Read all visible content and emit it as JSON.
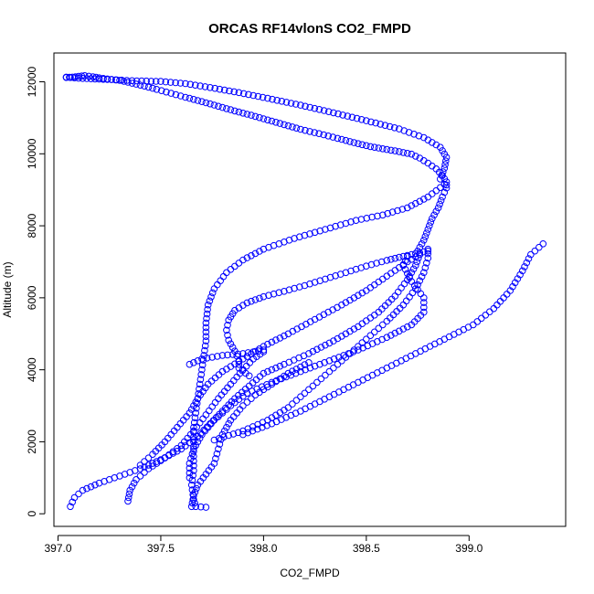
{
  "chart_data": {
    "type": "scatter",
    "title": "ORCAS RF14vlonS CO2_FMPD",
    "xlabel": "CO2_FMPD",
    "ylabel": "Altitude (m)",
    "xlim": [
      396.98,
      399.47
    ],
    "ylim": [
      -350,
      12800
    ],
    "x_ticks": [
      397.0,
      397.5,
      398.0,
      398.5,
      399.0
    ],
    "x_tick_labels": [
      "397.0",
      "397.5",
      "398.0",
      "398.5",
      "399.0"
    ],
    "y_ticks": [
      0,
      2000,
      4000,
      6000,
      8000,
      10000,
      12000
    ],
    "y_tick_labels": [
      "0",
      "2000",
      "4000",
      "6000",
      "8000",
      "10000",
      "12000"
    ],
    "grid": false,
    "marker": "open-circle",
    "color": "#0000FF",
    "series": [
      {
        "points": [
          [
            397.04,
            12120
          ],
          [
            397.07,
            12130
          ],
          [
            397.1,
            12150
          ],
          [
            397.13,
            12170
          ],
          [
            397.17,
            12140
          ],
          [
            397.2,
            12110
          ],
          [
            397.24,
            12080
          ],
          [
            397.3,
            12040
          ],
          [
            397.36,
            11960
          ],
          [
            397.42,
            11880
          ],
          [
            397.48,
            11790
          ],
          [
            397.55,
            11680
          ],
          [
            397.62,
            11570
          ],
          [
            397.7,
            11450
          ],
          [
            397.78,
            11320
          ],
          [
            397.86,
            11190
          ],
          [
            397.94,
            11070
          ],
          [
            398.02,
            10940
          ],
          [
            398.1,
            10810
          ],
          [
            398.18,
            10680
          ],
          [
            398.27,
            10560
          ],
          [
            398.36,
            10430
          ],
          [
            398.44,
            10310
          ],
          [
            398.52,
            10200
          ],
          [
            398.6,
            10120
          ],
          [
            398.66,
            10060
          ],
          [
            398.72,
            9990
          ],
          [
            398.76,
            9880
          ],
          [
            398.8,
            9740
          ],
          [
            398.84,
            9580
          ],
          [
            398.87,
            9400
          ],
          [
            398.89,
            9220
          ],
          [
            398.89,
            9050
          ],
          [
            398.87,
            8800
          ],
          [
            398.85,
            8500
          ],
          [
            398.82,
            8200
          ],
          [
            398.8,
            7900
          ],
          [
            398.78,
            7600
          ],
          [
            398.75,
            7300
          ]
        ]
      },
      {
        "points": [
          [
            398.8,
            7300
          ],
          [
            398.74,
            7230
          ],
          [
            398.68,
            7150
          ],
          [
            398.6,
            7040
          ],
          [
            398.5,
            6880
          ],
          [
            398.4,
            6700
          ],
          [
            398.3,
            6520
          ],
          [
            398.2,
            6340
          ],
          [
            398.1,
            6180
          ],
          [
            398.0,
            6030
          ],
          [
            397.92,
            5860
          ],
          [
            397.86,
            5650
          ],
          [
            397.83,
            5380
          ],
          [
            397.82,
            5100
          ],
          [
            397.83,
            4820
          ],
          [
            397.86,
            4520
          ],
          [
            397.88,
            4250
          ],
          [
            397.88,
            4050
          ],
          [
            397.93,
            3830
          ]
        ]
      },
      {
        "points": [
          [
            397.04,
            12130
          ],
          [
            397.1,
            12100
          ],
          [
            397.18,
            12080
          ],
          [
            397.26,
            12060
          ],
          [
            397.36,
            12030
          ],
          [
            397.5,
            12010
          ],
          [
            397.62,
            11950
          ],
          [
            397.74,
            11840
          ],
          [
            397.88,
            11700
          ],
          [
            398.02,
            11540
          ],
          [
            398.18,
            11350
          ],
          [
            398.34,
            11140
          ],
          [
            398.5,
            10920
          ],
          [
            398.66,
            10690
          ],
          [
            398.78,
            10450
          ],
          [
            398.86,
            10180
          ],
          [
            398.89,
            9900
          ],
          [
            398.88,
            9600
          ],
          [
            398.86,
            9300
          ]
        ]
      },
      {
        "points": [
          [
            398.88,
            9150
          ],
          [
            398.8,
            8800
          ],
          [
            398.7,
            8500
          ],
          [
            398.58,
            8300
          ],
          [
            398.45,
            8150
          ],
          [
            398.3,
            7900
          ],
          [
            398.15,
            7650
          ],
          [
            398.0,
            7350
          ],
          [
            397.9,
            7050
          ],
          [
            397.82,
            6700
          ],
          [
            397.76,
            6250
          ],
          [
            397.73,
            5800
          ],
          [
            397.72,
            5300
          ],
          [
            397.72,
            4800
          ],
          [
            397.71,
            4400
          ],
          [
            397.7,
            4000
          ],
          [
            397.69,
            3600
          ],
          [
            397.68,
            3200
          ],
          [
            397.67,
            2800
          ],
          [
            397.66,
            2400
          ],
          [
            397.66,
            2000
          ],
          [
            397.66,
            1600
          ],
          [
            397.66,
            1200
          ],
          [
            397.65,
            800
          ],
          [
            397.66,
            400
          ],
          [
            397.67,
            200
          ],
          [
            397.72,
            180
          ]
        ]
      },
      {
        "points": [
          [
            397.06,
            200
          ],
          [
            397.08,
            450
          ],
          [
            397.12,
            650
          ],
          [
            397.2,
            850
          ],
          [
            397.3,
            1050
          ],
          [
            397.4,
            1250
          ],
          [
            397.5,
            1500
          ],
          [
            397.6,
            1800
          ],
          [
            397.68,
            2150
          ],
          [
            397.74,
            2500
          ],
          [
            397.8,
            2850
          ],
          [
            397.86,
            3200
          ],
          [
            397.93,
            3550
          ],
          [
            398.0,
            3900
          ],
          [
            398.1,
            4150
          ],
          [
            398.22,
            4450
          ],
          [
            398.34,
            4800
          ],
          [
            398.46,
            5200
          ],
          [
            398.56,
            5600
          ],
          [
            398.64,
            6050
          ],
          [
            398.7,
            6500
          ],
          [
            398.74,
            6900
          ],
          [
            398.76,
            7200
          ]
        ]
      },
      {
        "points": [
          [
            397.34,
            350
          ],
          [
            397.35,
            650
          ],
          [
            397.38,
            950
          ],
          [
            397.44,
            1250
          ],
          [
            397.52,
            1550
          ],
          [
            397.6,
            1900
          ],
          [
            397.66,
            2300
          ],
          [
            397.72,
            2750
          ],
          [
            397.78,
            3200
          ],
          [
            397.84,
            3600
          ],
          [
            397.9,
            4000
          ],
          [
            397.95,
            4300
          ],
          [
            398.0,
            4500
          ]
        ]
      },
      {
        "points": [
          [
            397.4,
            1350
          ],
          [
            397.46,
            1650
          ],
          [
            397.52,
            2000
          ],
          [
            397.58,
            2400
          ],
          [
            397.64,
            2800
          ],
          [
            397.68,
            3200
          ],
          [
            397.73,
            3600
          ],
          [
            397.8,
            3950
          ],
          [
            397.9,
            4300
          ],
          [
            398.0,
            4650
          ],
          [
            398.12,
            5000
          ],
          [
            398.25,
            5400
          ],
          [
            398.38,
            5800
          ],
          [
            398.5,
            6200
          ],
          [
            398.6,
            6600
          ],
          [
            398.7,
            7000
          ],
          [
            398.76,
            7200
          ]
        ]
      },
      {
        "points": [
          [
            397.76,
            2050
          ],
          [
            397.9,
            2300
          ],
          [
            398.02,
            2600
          ],
          [
            398.12,
            2950
          ],
          [
            398.2,
            3350
          ],
          [
            398.28,
            3750
          ],
          [
            398.36,
            4150
          ],
          [
            398.44,
            4550
          ],
          [
            398.52,
            4950
          ],
          [
            398.6,
            5350
          ],
          [
            398.68,
            5800
          ],
          [
            398.74,
            6250
          ],
          [
            398.78,
            6700
          ],
          [
            398.8,
            7100
          ],
          [
            398.8,
            7350
          ]
        ]
      },
      {
        "points": [
          [
            397.9,
            2200
          ],
          [
            398.04,
            2500
          ],
          [
            398.18,
            2850
          ],
          [
            398.32,
            3250
          ],
          [
            398.46,
            3650
          ],
          [
            398.6,
            4050
          ],
          [
            398.74,
            4450
          ],
          [
            398.88,
            4850
          ],
          [
            399.02,
            5250
          ],
          [
            399.12,
            5700
          ],
          [
            399.2,
            6200
          ],
          [
            399.26,
            6750
          ],
          [
            399.3,
            7200
          ],
          [
            399.36,
            7500
          ]
        ]
      },
      {
        "points": [
          [
            397.64,
            1000
          ],
          [
            397.64,
            1400
          ],
          [
            397.66,
            1800
          ],
          [
            397.7,
            2200
          ],
          [
            397.76,
            2600
          ],
          [
            397.84,
            3000
          ],
          [
            397.92,
            3350
          ],
          [
            398.04,
            3650
          ],
          [
            398.18,
            3950
          ],
          [
            398.32,
            4250
          ],
          [
            398.46,
            4550
          ],
          [
            398.6,
            4900
          ],
          [
            398.72,
            5250
          ],
          [
            398.78,
            5600
          ],
          [
            398.78,
            6000
          ],
          [
            398.72,
            6450
          ],
          [
            398.68,
            6900
          ],
          [
            398.7,
            7150
          ]
        ]
      },
      {
        "points": [
          [
            397.64,
            4150
          ],
          [
            397.7,
            4300
          ],
          [
            397.8,
            4400
          ],
          [
            397.9,
            4450
          ],
          [
            398.0,
            4550
          ]
        ]
      },
      {
        "points": [
          [
            397.65,
            200
          ],
          [
            397.66,
            500
          ],
          [
            397.68,
            800
          ],
          [
            397.72,
            1100
          ],
          [
            397.76,
            1400
          ],
          [
            397.78,
            1800
          ],
          [
            397.8,
            2200
          ],
          [
            397.84,
            2600
          ],
          [
            397.9,
            3000
          ],
          [
            397.96,
            3300
          ],
          [
            398.04,
            3600
          ],
          [
            398.12,
            3900
          ],
          [
            398.22,
            4200
          ]
        ]
      }
    ]
  }
}
